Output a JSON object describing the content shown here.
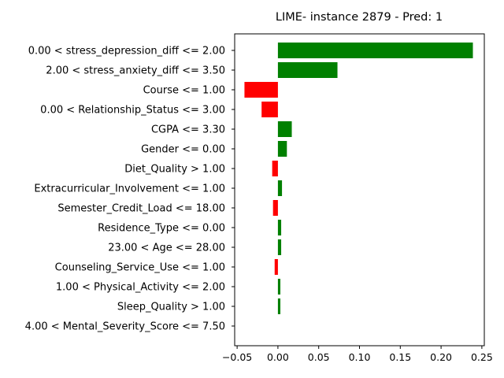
{
  "chart_data": {
    "type": "bar",
    "orientation": "horizontal",
    "title": "LIME- instance 2879 - Pred: 1",
    "xlabel": "",
    "ylabel": "",
    "xlim": [
      -0.053,
      0.253
    ],
    "xticks": [
      -0.05,
      0.0,
      0.05,
      0.1,
      0.15,
      0.2,
      0.25
    ],
    "xtick_labels": [
      "−0.05",
      "0.00",
      "0.05",
      "0.10",
      "0.15",
      "0.20",
      "0.25"
    ],
    "grid": false,
    "legend": false,
    "colors": {
      "positive": "#008000",
      "negative": "#ff0000"
    },
    "categories": [
      "0.00 < stress_depression_diff <= 2.00",
      "2.00 < stress_anxiety_diff <= 3.50",
      "Course <= 1.00",
      "0.00 < Relationship_Status <= 3.00",
      "CGPA <= 3.30",
      "Gender <= 0.00",
      "Diet_Quality > 1.00",
      "Extracurricular_Involvement <= 1.00",
      "Semester_Credit_Load <= 18.00",
      "Residence_Type <= 0.00",
      "23.00 < Age <= 28.00",
      "Counseling_Service_Use <= 1.00",
      "1.00 < Physical_Activity <= 2.00",
      "Sleep_Quality > 1.00",
      "4.00 < Mental_Severity_Score <= 7.50"
    ],
    "values": [
      0.239,
      0.073,
      -0.041,
      -0.02,
      0.017,
      0.011,
      -0.007,
      0.005,
      -0.006,
      0.004,
      0.004,
      -0.004,
      0.003,
      0.003,
      0.0
    ]
  }
}
